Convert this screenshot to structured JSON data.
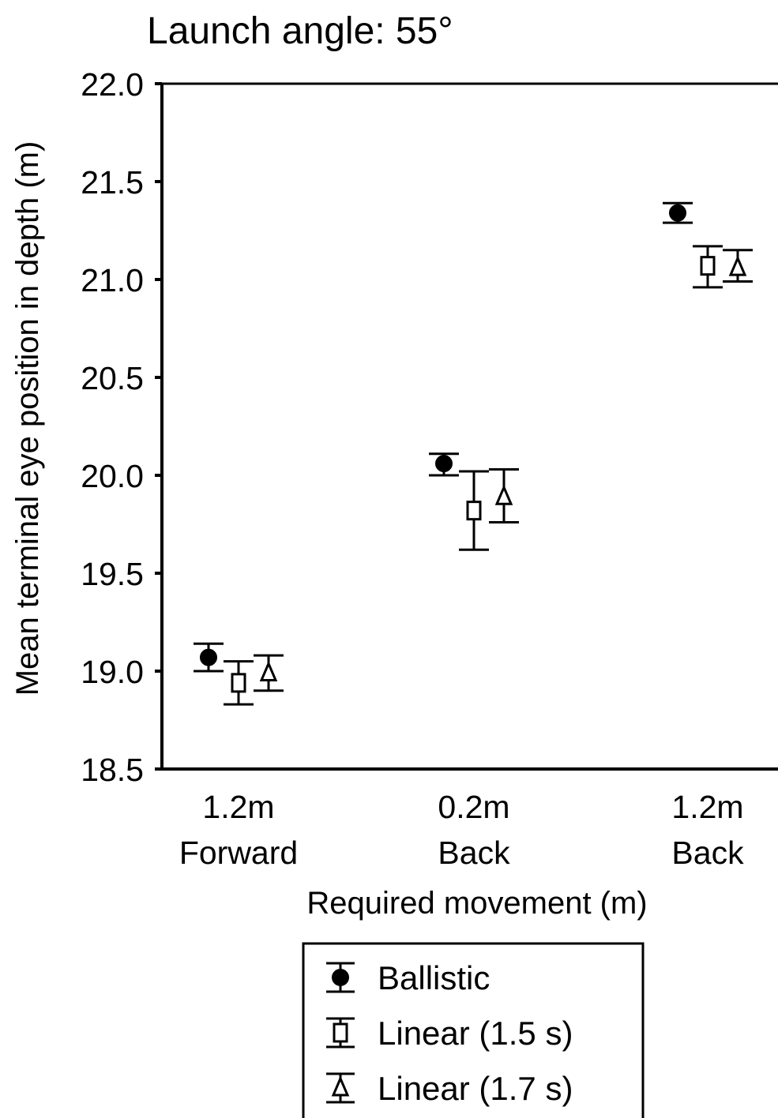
{
  "chart_data": {
    "type": "scatter",
    "title": "Launch angle: 55°",
    "xlabel": "Required movement (m)",
    "ylabel": "Mean terminal eye position in depth (m)",
    "ylim": [
      18.5,
      22.0
    ],
    "yticks": [
      "18.5",
      "19.0",
      "19.5",
      "20.0",
      "20.5",
      "21.0",
      "21.5",
      "22.0"
    ],
    "categories": [
      {
        "line1": "1.2m",
        "line2": "Forward"
      },
      {
        "line1": "0.2m",
        "line2": "Back"
      },
      {
        "line1": "1.2m",
        "line2": "Back"
      }
    ],
    "series": [
      {
        "name": "Ballistic",
        "marker": "filled-circle",
        "values": [
          19.07,
          20.06,
          21.34
        ],
        "err_low": [
          19.0,
          20.0,
          21.29
        ],
        "err_high": [
          19.14,
          20.11,
          21.39
        ]
      },
      {
        "name": "Linear (1.5 s)",
        "marker": "open-square",
        "values": [
          18.94,
          19.82,
          21.07
        ],
        "err_low": [
          18.83,
          19.62,
          20.96
        ],
        "err_high": [
          19.05,
          20.02,
          21.17
        ]
      },
      {
        "name": "Linear (1.7 s)",
        "marker": "open-triangle",
        "values": [
          18.99,
          19.89,
          21.06
        ],
        "err_low": [
          18.9,
          19.76,
          20.99
        ],
        "err_high": [
          19.08,
          20.03,
          21.15
        ]
      }
    ],
    "grid": false,
    "legend_position": "bottom-center"
  }
}
